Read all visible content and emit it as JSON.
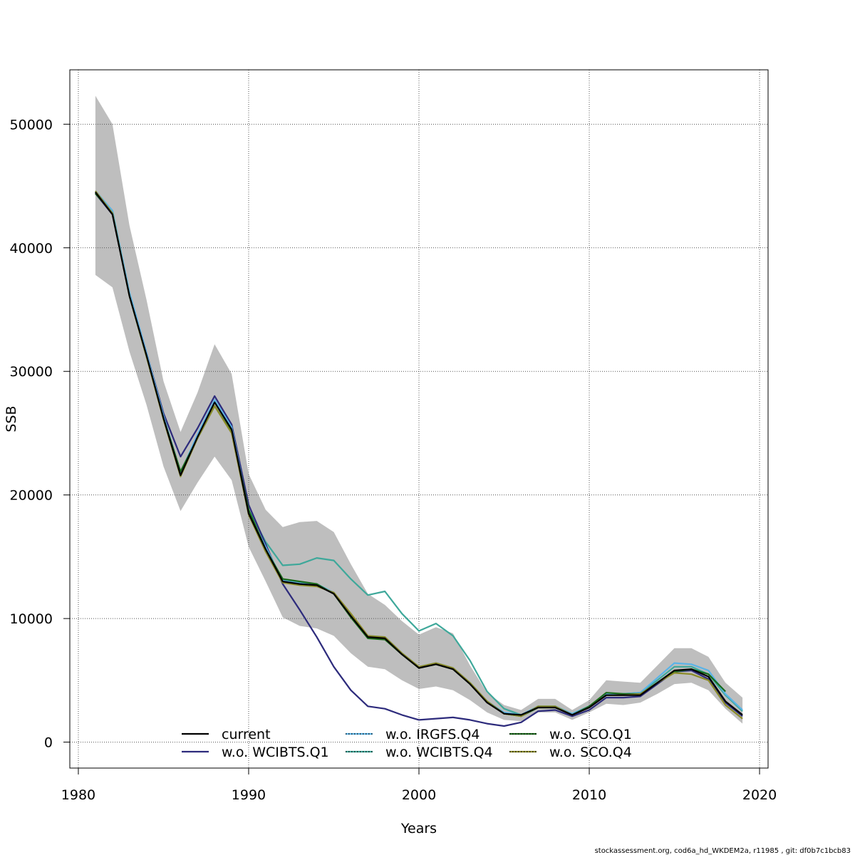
{
  "chart_data": {
    "type": "line",
    "title": "",
    "xlabel": "Years",
    "ylabel": "SSB",
    "xlim": [
      1979.5,
      2020.5
    ],
    "ylim": [
      -2100,
      54400
    ],
    "grid": true,
    "legend_position": "bottom",
    "x_ticks": [
      1980,
      1990,
      2000,
      2010,
      2020
    ],
    "y_ticks": [
      0,
      10000,
      20000,
      30000,
      40000,
      50000
    ],
    "x": [
      1981,
      1982,
      1983,
      1984,
      1985,
      1986,
      1987,
      1988,
      1989,
      1990,
      1991,
      1992,
      1993,
      1994,
      1995,
      1996,
      1997,
      1998,
      1999,
      2000,
      2001,
      2002,
      2003,
      2004,
      2005,
      2006,
      2007,
      2008,
      2009,
      2010,
      2011,
      2012,
      2013,
      2014,
      2015,
      2016,
      2017,
      2018,
      2019
    ],
    "band": {
      "color": "#bebebe",
      "upper": [
        52300,
        50000,
        41800,
        35800,
        29200,
        25100,
        28300,
        32200,
        29800,
        21700,
        18800,
        17400,
        17800,
        17900,
        17000,
        14400,
        12000,
        11100,
        9800,
        8700,
        9300,
        8800,
        6200,
        4000,
        3000,
        2600,
        3500,
        3500,
        2600,
        3400,
        5000,
        4900,
        4800,
        6200,
        7600,
        7600,
        6900,
        4800,
        3600
      ],
      "lower": [
        37800,
        36800,
        31600,
        27300,
        22300,
        18700,
        21000,
        23100,
        21200,
        15800,
        13000,
        10100,
        9400,
        9200,
        8600,
        7200,
        6100,
        5900,
        5000,
        4300,
        4500,
        4200,
        3400,
        2400,
        1800,
        1700,
        2400,
        2400,
        1800,
        2400,
        3100,
        3000,
        3200,
        3900,
        4700,
        4800,
        4200,
        2700,
        1500
      ]
    },
    "series": [
      {
        "name": "current",
        "color": "#000000",
        "dashed": false,
        "values": [
          44500,
          42700,
          36100,
          31300,
          26200,
          21600,
          24700,
          27500,
          25300,
          18500,
          15600,
          13000,
          12800,
          12700,
          12000,
          10200,
          8500,
          8400,
          7100,
          6000,
          6300,
          5900,
          4700,
          3200,
          2300,
          2200,
          2800,
          2800,
          2200,
          2800,
          3800,
          3800,
          3800,
          4800,
          5800,
          5900,
          5300,
          3300,
          2200
        ]
      },
      {
        "name": "w.o. WCIBTS.Q1",
        "color": "#2d2b7c",
        "dashed": false,
        "values": [
          44400,
          42700,
          36300,
          31500,
          26600,
          23100,
          25400,
          28000,
          25700,
          19200,
          16000,
          12800,
          10700,
          8500,
          6100,
          4200,
          2900,
          2700,
          2200,
          1800,
          1900,
          2000,
          1800,
          1500,
          1300,
          1600,
          2500,
          2600,
          2100,
          2600,
          3600,
          3600,
          3700,
          4700,
          5700,
          5800,
          5100,
          3200,
          2100
        ]
      },
      {
        "name": "w.o. IRGFS.Q4",
        "color": "#5ab4e8",
        "dashed": true,
        "values": [
          44600,
          43000,
          36400,
          31500,
          26400,
          21800,
          24900,
          27700,
          25500,
          18600,
          15800,
          13100,
          12900,
          12800,
          12100,
          10300,
          8600,
          8500,
          7200,
          6100,
          6400,
          6000,
          4800,
          3300,
          2400,
          2200,
          2900,
          2900,
          2300,
          2900,
          3900,
          3900,
          4000,
          5200,
          6400,
          6300,
          5800,
          3900,
          2600
        ]
      },
      {
        "name": "w.o. WCIBTS.Q4",
        "color": "#3ea89a",
        "dashed": true,
        "values": [
          44500,
          43000,
          36300,
          31400,
          26300,
          21800,
          24800,
          27600,
          25400,
          18800,
          16200,
          14300,
          14400,
          14900,
          14700,
          13200,
          11900,
          12200,
          10400,
          9000,
          9600,
          8600,
          6600,
          4100,
          2700,
          2200,
          2900,
          2900,
          2300,
          2900,
          3900,
          3900,
          4000,
          5000,
          6100,
          6100,
          5500,
          3800,
          2500
        ]
      },
      {
        "name": "w.o. SCO.Q1",
        "color": "#1a6b1a",
        "dashed": true,
        "values": [
          44400,
          42800,
          36100,
          31200,
          26200,
          21900,
          24600,
          27200,
          25100,
          18800,
          15600,
          13200,
          13000,
          12800,
          12000,
          10100,
          8400,
          8300,
          7100,
          6000,
          6300,
          5900,
          4700,
          3300,
          2300,
          2100,
          2800,
          2800,
          2200,
          2900,
          4000,
          3900,
          3900,
          4800,
          5700,
          5900,
          5500,
          4100,
          null
        ]
      },
      {
        "name": "w.o. SCO.Q4",
        "color": "#8c8c28",
        "dashed": true,
        "values": [
          44600,
          42800,
          36100,
          31200,
          26100,
          21500,
          24600,
          27200,
          25000,
          18400,
          15400,
          12900,
          12700,
          12600,
          12100,
          10400,
          8600,
          8500,
          7200,
          6100,
          6400,
          6000,
          4800,
          3300,
          2300,
          2100,
          2900,
          2900,
          2200,
          2800,
          3800,
          3800,
          3900,
          4800,
          5600,
          5500,
          5000,
          3000,
          1900
        ]
      }
    ]
  },
  "footer": {
    "source_note": "stockassessment.org, cod6a_hd_WKDEM2a, r11985 , git: df0b7c1bcb83"
  }
}
